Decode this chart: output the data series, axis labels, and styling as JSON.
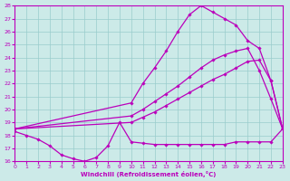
{
  "xlabel": "Windchill (Refroidissement éolien,°C)",
  "xlim": [
    0,
    23
  ],
  "ylim": [
    16,
    28
  ],
  "yticks": [
    16,
    17,
    18,
    19,
    20,
    21,
    22,
    23,
    24,
    25,
    26,
    27,
    28
  ],
  "xticks": [
    0,
    1,
    2,
    3,
    4,
    5,
    6,
    7,
    8,
    9,
    10,
    11,
    12,
    13,
    14,
    15,
    16,
    17,
    18,
    19,
    20,
    21,
    22,
    23
  ],
  "bg_color": "#cceae8",
  "line_color": "#bb00bb",
  "grid_color": "#99cccc",
  "series": [
    {
      "x": [
        0,
        1,
        2,
        3,
        4,
        5,
        6,
        7,
        8,
        9,
        10,
        11,
        12,
        13,
        14,
        15,
        16,
        17,
        18,
        19,
        20,
        21,
        22,
        23
      ],
      "y": [
        18.3,
        18.0,
        17.7,
        17.2,
        16.5,
        16.2,
        16.0,
        16.3,
        17.2,
        19.0,
        17.5,
        17.4,
        17.3,
        17.3,
        17.3,
        17.3,
        17.3,
        17.3,
        17.3,
        17.5,
        17.5,
        17.5,
        17.5,
        18.5
      ]
    },
    {
      "x": [
        0,
        10,
        11,
        12,
        13,
        14,
        15,
        16,
        17,
        18,
        19,
        20,
        21,
        22,
        23
      ],
      "y": [
        18.5,
        19.0,
        19.4,
        19.8,
        20.3,
        20.8,
        21.3,
        21.8,
        22.3,
        22.7,
        23.2,
        23.7,
        23.8,
        22.2,
        18.5
      ]
    },
    {
      "x": [
        0,
        10,
        11,
        12,
        13,
        14,
        15,
        16,
        17,
        18,
        19,
        20,
        21,
        22,
        23
      ],
      "y": [
        18.5,
        19.5,
        20.0,
        20.6,
        21.2,
        21.8,
        22.5,
        23.2,
        23.8,
        24.2,
        24.5,
        24.7,
        23.0,
        20.8,
        18.5
      ]
    },
    {
      "x": [
        0,
        10,
        11,
        12,
        13,
        14,
        15,
        16,
        17,
        18,
        19,
        20,
        21,
        22,
        23
      ],
      "y": [
        18.5,
        20.5,
        22.0,
        23.2,
        24.5,
        26.0,
        27.3,
        28.0,
        27.5,
        27.0,
        26.5,
        25.3,
        24.7,
        22.2,
        18.5
      ]
    }
  ]
}
